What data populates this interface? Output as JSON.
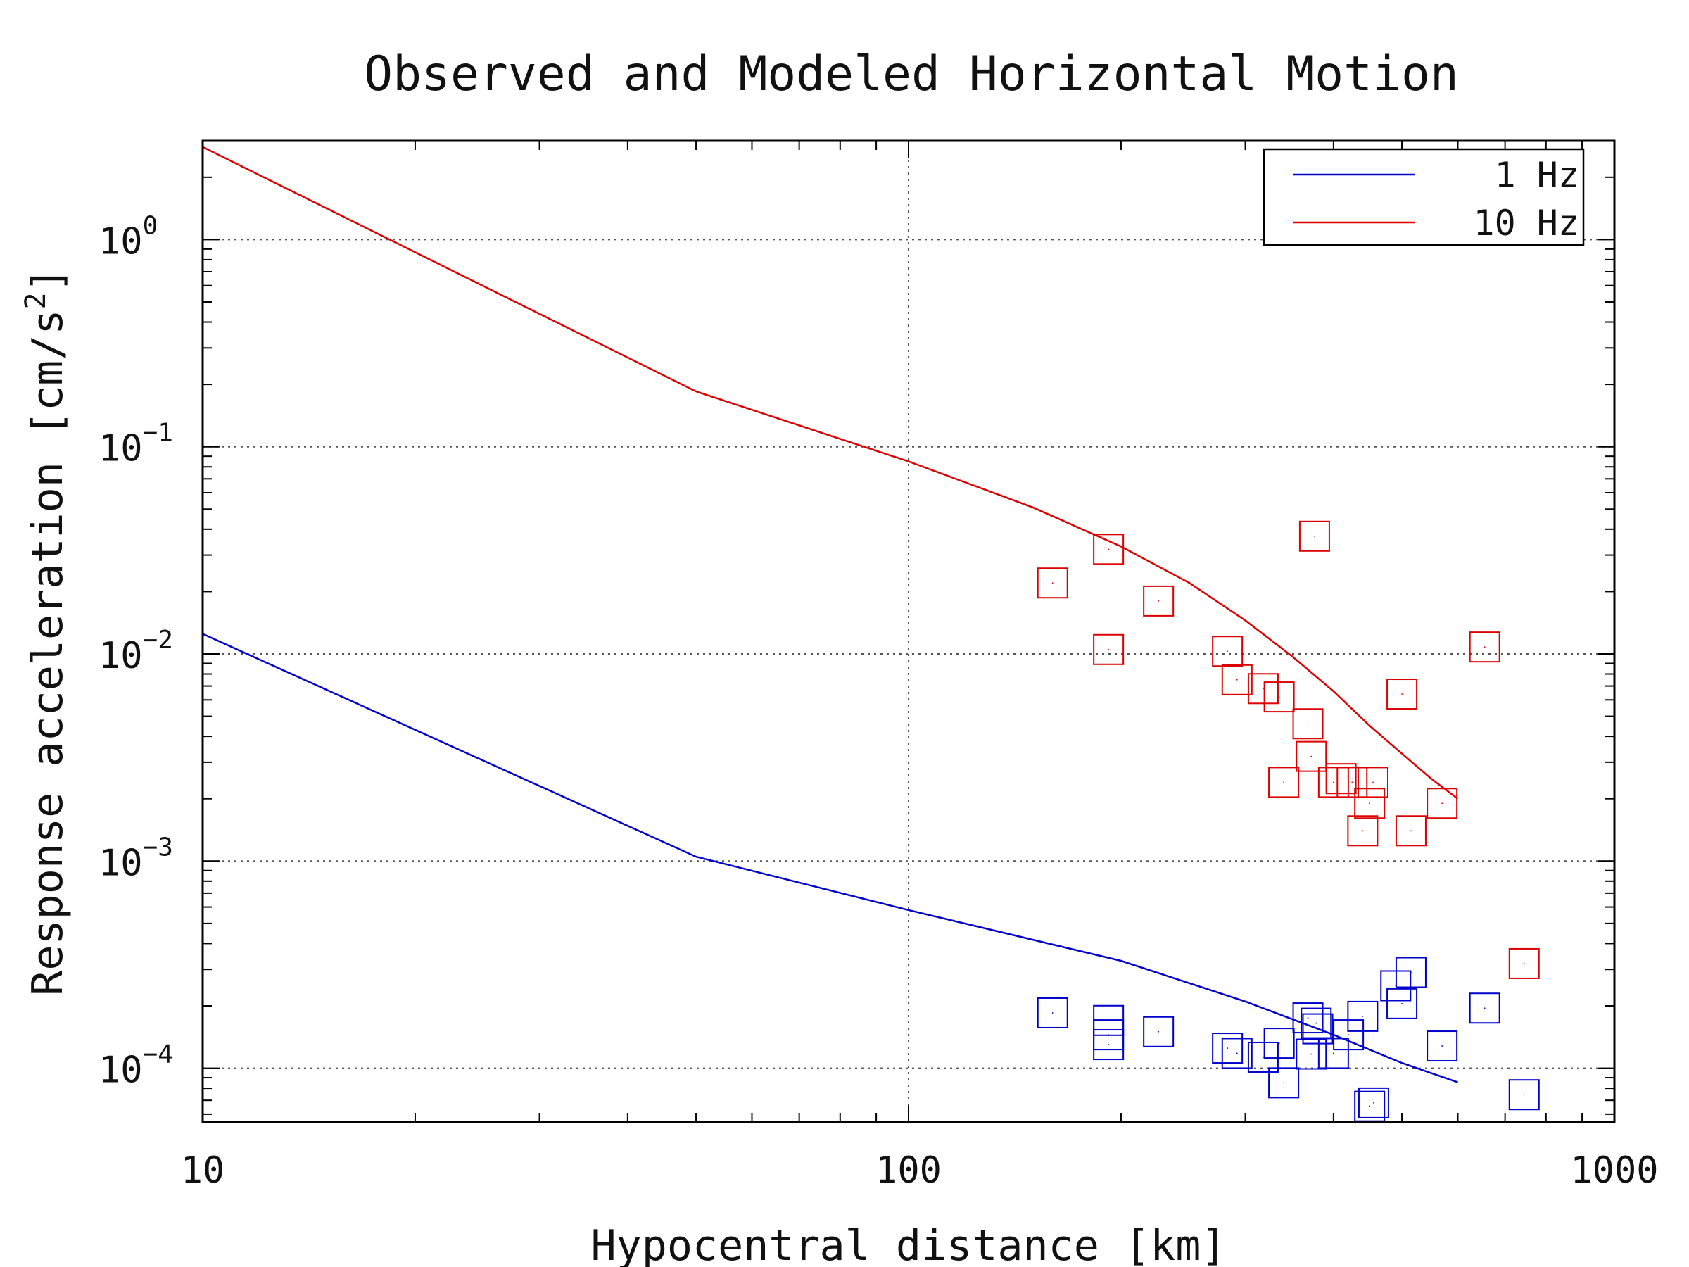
{
  "chart_data": {
    "type": "scatter",
    "title": "Observed and Modeled Horizontal Motion",
    "xlabel": "Hypocentral distance [km]",
    "ylabel": "Response acceleration [cm/s^2]",
    "xscale": "log",
    "yscale": "log",
    "xlim": [
      10,
      1000
    ],
    "ylim": [
      5.5e-05,
      3.0
    ],
    "x_ticks": [
      {
        "value": 10,
        "label": "10"
      },
      {
        "value": 100,
        "label": "100"
      },
      {
        "value": 1000,
        "label": "1000"
      }
    ],
    "y_ticks": [
      {
        "value": 1,
        "base": "10",
        "exp": "0"
      },
      {
        "value": 0.1,
        "base": "10",
        "exp": "−1"
      },
      {
        "value": 0.01,
        "base": "10",
        "exp": "−2"
      },
      {
        "value": 0.001,
        "base": "10",
        "exp": "−3"
      },
      {
        "value": 0.0001,
        "base": "10",
        "exp": "−4"
      }
    ],
    "grid": true,
    "legend_position": "top-right",
    "colors": {
      "1 Hz": "#0000cc",
      "10 Hz": "#dd0000"
    },
    "series": [
      {
        "name": "1 Hz",
        "kind": "line",
        "color": "#0000cc",
        "x": [
          10,
          50,
          100,
          200,
          300,
          400,
          500,
          600
        ],
        "y": [
          0.0125,
          0.00105,
          0.00058,
          0.00033,
          0.00021,
          0.000145,
          0.000106,
          8.55e-05
        ]
      },
      {
        "name": "10 Hz",
        "kind": "line",
        "color": "#dd0000",
        "x": [
          10,
          50,
          100,
          150,
          200,
          250,
          300,
          350,
          400,
          450,
          500,
          550,
          600
        ],
        "y": [
          2.8,
          0.185,
          0.085,
          0.051,
          0.033,
          0.022,
          0.0145,
          0.0097,
          0.0066,
          0.0045,
          0.0033,
          0.0025,
          0.002
        ]
      },
      {
        "name": "10 Hz observed",
        "kind": "scatter",
        "marker": "square",
        "color": "#dd0000",
        "x": [
          160,
          192,
          192,
          226,
          283,
          292,
          318,
          335,
          340,
          368,
          372,
          376,
          400,
          410,
          425,
          440,
          450,
          455,
          500,
          515,
          570,
          655,
          745
        ],
        "y": [
          0.022,
          0.032,
          0.0105,
          0.018,
          0.0103,
          0.0075,
          0.0068,
          0.0062,
          0.0024,
          0.0046,
          0.0032,
          0.037,
          0.0024,
          0.0025,
          0.0024,
          0.0014,
          0.0019,
          0.0024,
          0.0064,
          0.0014,
          0.0019,
          0.0108,
          0.00032
        ]
      },
      {
        "name": "1 Hz observed",
        "kind": "scatter",
        "marker": "square",
        "color": "#0000cc",
        "x": [
          160,
          192,
          192,
          192,
          226,
          283,
          292,
          318,
          335,
          340,
          368,
          372,
          378,
          380,
          400,
          420,
          440,
          450,
          456,
          490,
          500,
          515,
          570,
          655,
          745
        ],
        "y": [
          0.000185,
          0.00017,
          0.000145,
          0.00013,
          0.00015,
          0.000125,
          0.000118,
          0.000113,
          0.000132,
          8.5e-05,
          0.000175,
          0.000117,
          0.000165,
          0.000155,
          0.000118,
          0.000145,
          0.000178,
          6.55e-05,
          6.8e-05,
          0.00025,
          0.000205,
          0.00029,
          0.000128,
          0.000195,
          7.45e-05
        ]
      }
    ]
  }
}
